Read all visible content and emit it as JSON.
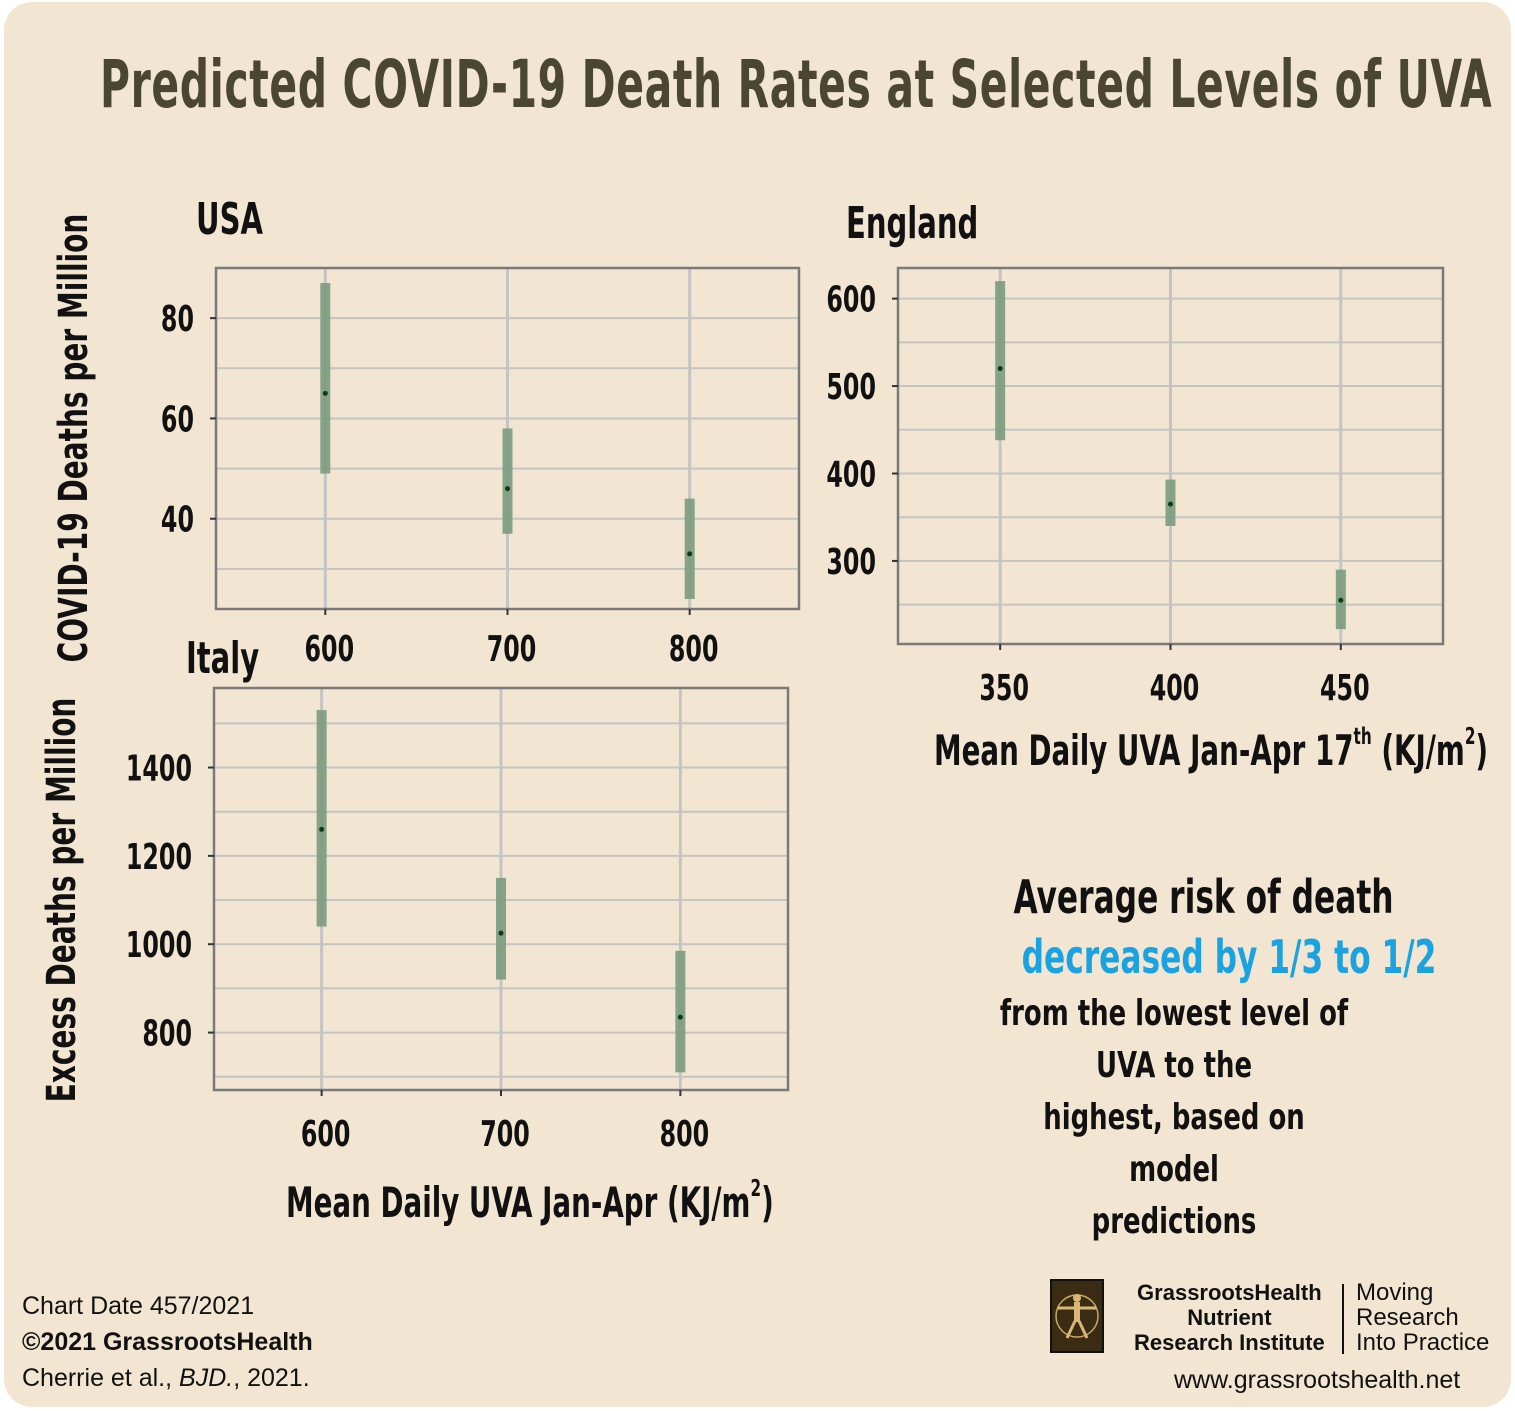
{
  "title": "Predicted COVID-19 Death Rates at Selected Levels of UVA",
  "chart_data": [
    {
      "panel": "USA",
      "type": "scatter",
      "ylabel": "COVID-19 Deaths per Million",
      "xlabel": "",
      "x": [
        600,
        700,
        800
      ],
      "y": [
        65,
        46,
        33
      ],
      "ci_low": [
        49,
        37,
        24
      ],
      "ci_high": [
        87,
        58,
        44
      ],
      "xticks": [
        600,
        700,
        800
      ],
      "yticks": [
        40,
        60,
        80
      ],
      "xlim": [
        540,
        860
      ],
      "ylim": [
        22,
        90
      ],
      "grid": true
    },
    {
      "panel": "England",
      "type": "scatter",
      "ylabel": "",
      "xlabel": "Mean Daily UVA Jan-Apr 17th (KJ/m2)",
      "x": [
        350,
        400,
        450
      ],
      "y": [
        520,
        365,
        255
      ],
      "ci_low": [
        438,
        340,
        222
      ],
      "ci_high": [
        620,
        393,
        290
      ],
      "xticks": [
        350,
        400,
        450
      ],
      "yticks": [
        300,
        400,
        500,
        600
      ],
      "xlim": [
        320,
        480
      ],
      "ylim": [
        205,
        635
      ],
      "grid": true
    },
    {
      "panel": "Italy",
      "type": "scatter",
      "ylabel": "Excess Deaths per Million",
      "xlabel": "Mean Daily UVA Jan-Apr (KJ/m2)",
      "x": [
        600,
        700,
        800
      ],
      "y": [
        1260,
        1025,
        835
      ],
      "ci_low": [
        1040,
        920,
        710
      ],
      "ci_high": [
        1530,
        1150,
        985
      ],
      "xticks": [
        600,
        700,
        800
      ],
      "yticks": [
        800,
        1000,
        1200,
        1400
      ],
      "xlim": [
        540,
        860
      ],
      "ylim": [
        670,
        1580
      ],
      "grid": true
    }
  ],
  "note": {
    "line1": "Average risk of death",
    "line2": "decreased by 1/3 to 1/2",
    "line3a": "from the lowest level of UVA to the",
    "line3b": "highest, based on model",
    "line3c": "predictions"
  },
  "footer": {
    "chart_date": "Chart Date 457/2021",
    "copyright": "©2021 GrassrootsHealth",
    "citation_authors": "Cherrie et al., ",
    "citation_journal": "BJD.",
    "citation_year": ", 2021."
  },
  "logo": {
    "org_line1": "GrassrootsHealth",
    "org_line2": "Nutrient",
    "org_line3": "Research Institute",
    "tag_line1": "Moving",
    "tag_line2": "Research",
    "tag_line3": "Into Practice",
    "website": "www.grassrootshealth.net"
  },
  "colors": {
    "background": "#f2e6d2",
    "title": "#4a4630",
    "highlight": "#1aa3e0",
    "bar": "#7f9e83",
    "point": "#0b3d14",
    "grid": "#c4c4c4",
    "frame": "#7a7a7a"
  }
}
